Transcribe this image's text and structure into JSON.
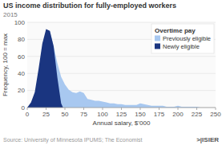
{
  "chart_data": {
    "type": "area",
    "title": "US income distribution for fully-employed workers",
    "subtitle": "2015",
    "x_label": "Annual salary, $’000",
    "y_label": "Frequency, 100 = max",
    "source": "Source: University of Minnesota IPUMS; The Economist",
    "annotations": [
      ">|ISIER"
    ],
    "xlim": [
      0,
      250
    ],
    "ylim": [
      0,
      100
    ],
    "xticks": [
      0,
      25,
      50,
      75,
      100,
      125,
      150,
      175,
      200,
      225,
      250
    ],
    "yticks": [
      0,
      20,
      40,
      60,
      80,
      100
    ],
    "grid": true,
    "legend": "upper right",
    "legend_title": "Overtime pay",
    "series": [
      {
        "name": "Previously eligible",
        "color": "#a8c8f0",
        "x": [
          0,
          5,
          10,
          15,
          20,
          25,
          30,
          35,
          40,
          45,
          50,
          55,
          60,
          65,
          70,
          75,
          80,
          85,
          90,
          95,
          100,
          105,
          110,
          115,
          120,
          125,
          130,
          135,
          140,
          145,
          150,
          155,
          160,
          165,
          170,
          175,
          180,
          185,
          190,
          195,
          200,
          205,
          210,
          215,
          220,
          225,
          230,
          235,
          240,
          245,
          250
        ],
        "values": [
          0,
          3,
          10,
          30,
          60,
          82,
          90,
          72,
          52,
          36,
          27,
          21,
          18,
          17,
          19,
          17,
          10,
          9,
          8,
          8,
          7,
          6,
          5,
          5,
          4,
          4,
          3,
          3,
          3,
          3,
          5,
          4,
          3,
          2,
          2,
          2,
          2,
          1,
          1,
          1,
          2,
          1,
          1,
          1,
          1,
          1,
          0,
          0,
          0,
          0,
          0
        ]
      },
      {
        "name": "Newly eligible",
        "color": "#1a3580",
        "x": [
          0,
          5,
          10,
          15,
          20,
          25,
          30,
          35,
          40,
          45,
          47.5,
          50
        ],
        "values": [
          0,
          6,
          18,
          45,
          75,
          92,
          90,
          72,
          35,
          5,
          0,
          0
        ]
      }
    ]
  }
}
